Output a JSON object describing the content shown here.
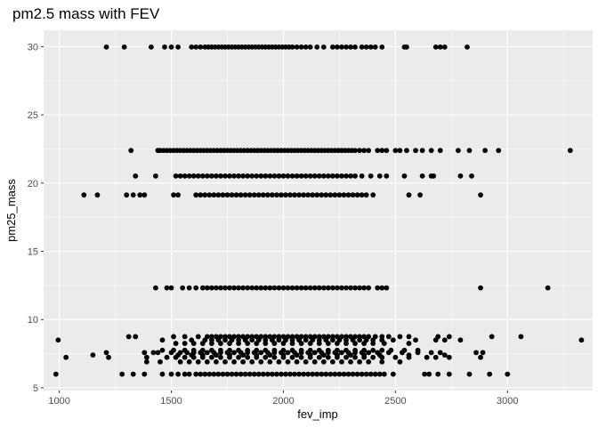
{
  "chart_data": {
    "type": "scatter",
    "title": "pm2.5 mass with FEV",
    "xlabel": "fev_imp",
    "ylabel": "pm25_mass",
    "xlim": [
      930,
      3380
    ],
    "ylim": [
      4.8,
      31.2
    ],
    "xticks": [
      1000,
      1500,
      2000,
      2500,
      3000
    ],
    "yticks": [
      5,
      10,
      15,
      20,
      25,
      30
    ],
    "grid": true,
    "legend": "none",
    "colors": {
      "panel": "#ebebeb",
      "grid": "#ffffff",
      "point": "#000000",
      "tick": "#4d4d4d"
    },
    "series": [
      {
        "bands": [
          {
            "y": 29.97,
            "x": [
              1210,
              1290,
              1410,
              1470,
              1500,
              1530,
              1590,
              1610,
              1630,
              1650,
              1665,
              1680,
              1695,
              1710,
              1725,
              1740,
              1755,
              1770,
              1785,
              1800,
              1815,
              1830,
              1845,
              1860,
              1875,
              1890,
              1905,
              1920,
              1935,
              1950,
              1965,
              1980,
              1995,
              2010,
              2025,
              2040,
              2060,
              2080,
              2100,
              2120,
              2150,
              2180,
              2220,
              2240,
              2260,
              2280,
              2300,
              2320,
              2350,
              2370,
              2390,
              2410,
              2440,
              2540,
              2550,
              2680,
              2700,
              2720,
              2820
            ]
          },
          {
            "y": 22.39,
            "x": [
              1320,
              1440,
              1450,
              1465,
              1480,
              1495,
              1510,
              1525,
              1540,
              1555,
              1570,
              1585,
              1600,
              1615,
              1630,
              1645,
              1660,
              1675,
              1690,
              1705,
              1720,
              1735,
              1750,
              1765,
              1780,
              1795,
              1810,
              1825,
              1840,
              1855,
              1870,
              1885,
              1900,
              1915,
              1930,
              1945,
              1960,
              1975,
              1990,
              2005,
              2020,
              2035,
              2050,
              2065,
              2080,
              2095,
              2110,
              2125,
              2140,
              2155,
              2170,
              2185,
              2200,
              2215,
              2230,
              2245,
              2260,
              2275,
              2290,
              2305,
              2320,
              2340,
              2360,
              2380,
              2420,
              2440,
              2460,
              2500,
              2520,
              2550,
              2590,
              2620,
              2660,
              2700,
              2780,
              2830,
              2900,
              2960,
              3280
            ]
          },
          {
            "y": 20.52,
            "x": [
              1340,
              1430,
              1520,
              1540,
              1560,
              1580,
              1600,
              1620,
              1640,
              1660,
              1680,
              1700,
              1720,
              1740,
              1760,
              1780,
              1800,
              1820,
              1840,
              1860,
              1880,
              1900,
              1920,
              1940,
              1960,
              1980,
              2000,
              2020,
              2040,
              2060,
              2080,
              2100,
              2120,
              2140,
              2160,
              2180,
              2200,
              2220,
              2240,
              2260,
              2280,
              2300,
              2320,
              2350,
              2390,
              2430,
              2460,
              2540,
              2620,
              2660,
              2670,
              2790,
              2840
            ]
          },
          {
            "y": 19.13,
            "x": [
              1110,
              1170,
              1300,
              1330,
              1360,
              1380,
              1510,
              1530,
              1610,
              1630,
              1650,
              1670,
              1690,
              1710,
              1730,
              1750,
              1770,
              1790,
              1810,
              1830,
              1850,
              1870,
              1890,
              1910,
              1930,
              1950,
              1970,
              1990,
              2010,
              2030,
              2050,
              2070,
              2090,
              2110,
              2130,
              2150,
              2170,
              2190,
              2210,
              2230,
              2250,
              2270,
              2290,
              2310,
              2330,
              2350,
              2370,
              2400,
              2560,
              2610,
              2880
            ]
          },
          {
            "y": 12.32,
            "x": [
              1430,
              1480,
              1500,
              1550,
              1580,
              1610,
              1640,
              1660,
              1680,
              1700,
              1720,
              1740,
              1760,
              1780,
              1800,
              1820,
              1840,
              1860,
              1880,
              1900,
              1920,
              1940,
              1960,
              1980,
              2000,
              2020,
              2040,
              2060,
              2080,
              2100,
              2120,
              2140,
              2160,
              2180,
              2200,
              2220,
              2240,
              2260,
              2280,
              2300,
              2320,
              2340,
              2360,
              2380,
              2420,
              2440,
              2460,
              2880,
              3180
            ]
          },
          {
            "y": 8.75,
            "x": [
              1310,
              1340,
              1510,
              1560,
              1620,
              1660,
              1680,
              1700,
              1720,
              1740,
              1760,
              1780,
              1800,
              1820,
              1840,
              1860,
              1880,
              1900,
              1920,
              1940,
              1960,
              1980,
              2000,
              2020,
              2040,
              2060,
              2080,
              2100,
              2120,
              2140,
              2160,
              2180,
              2200,
              2220,
              2240,
              2260,
              2280,
              2300,
              2320,
              2340,
              2360,
              2380,
              2410,
              2440,
              2470,
              2520,
              2560,
              2690,
              2740,
              2930,
              3060
            ]
          },
          {
            "y": 8.5,
            "x": [
              995,
              1460,
              1590,
              1650,
              1680,
              1710,
              1740,
              1770,
              1800,
              1830,
              1860,
              1890,
              1920,
              1950,
              1980,
              2010,
              2040,
              2070,
              2100,
              2130,
              2160,
              2190,
              2220,
              2250,
              2280,
              2310,
              2340,
              2370,
              2400,
              2440,
              2490,
              2590,
              2680,
              2720,
              2790,
              3330
            ]
          },
          {
            "y": 8.25,
            "x": [
              1520,
              1560,
              1600,
              1640,
              1680,
              1720,
              1760,
              1800,
              1840,
              1880,
              1920,
              1960,
              2000,
              2040,
              2080,
              2120,
              2160,
              2200,
              2240,
              2280,
              2320,
              2360,
              2400,
              2450,
              2560
            ]
          },
          {
            "y": 7.75,
            "x": [
              1460,
              1510,
              1560,
              1600,
              1640,
              1680,
              1720,
              1760,
              1800,
              1840,
              1880,
              1920,
              1960,
              2000,
              2040,
              2080,
              2120,
              2160,
              2200,
              2240,
              2280,
              2320,
              2360,
              2400,
              2440,
              2480,
              2540,
              2600
            ]
          },
          {
            "y": 7.58,
            "x": [
              1210,
              1380,
              1420,
              1440,
              1500,
              1540,
              1570,
              1600,
              1630,
              1660,
              1690,
              1720,
              1750,
              1780,
              1810,
              1840,
              1870,
              1900,
              1930,
              1960,
              1990,
              2020,
              2050,
              2080,
              2110,
              2140,
              2170,
              2200,
              2230,
              2260,
              2290,
              2320,
              2350,
              2380,
              2420,
              2470,
              2530,
              2600,
              2660,
              2700,
              2860,
              2890
            ]
          },
          {
            "y": 7.4,
            "x": [
              1150,
              1530,
              1590,
              1640,
              1700,
              1760,
              1820,
              1880,
              1940,
              2000,
              2060,
              2120,
              2180,
              2240,
              2300,
              2360,
              2430,
              2560,
              2720
            ]
          },
          {
            "y": 7.23,
            "x": [
              1030,
              1220,
              1390,
              1480,
              1520,
              1560,
              1600,
              1640,
              1680,
              1720,
              1760,
              1800,
              1840,
              1880,
              1920,
              1960,
              2000,
              2040,
              2080,
              2120,
              2160,
              2200,
              2240,
              2280,
              2320,
              2360,
              2400,
              2440,
              2500,
              2560,
              2640,
              2680,
              2740,
              2880
            ]
          },
          {
            "y": 6.9,
            "x": [
              1390,
              1450,
              1540,
              1580,
              1620,
              1660,
              1700,
              1740,
              1780,
              1820,
              1860,
              1900,
              1940,
              1980,
              2020,
              2060,
              2100,
              2140,
              2180,
              2220,
              2260,
              2300,
              2340,
              2380,
              2440,
              2520
            ]
          },
          {
            "y": 6.0,
            "x": [
              985,
              1280,
              1330,
              1380,
              1460,
              1500,
              1530,
              1560,
              1580,
              1610,
              1630,
              1650,
              1670,
              1690,
              1710,
              1730,
              1750,
              1770,
              1790,
              1810,
              1830,
              1850,
              1870,
              1890,
              1910,
              1930,
              1950,
              1970,
              1990,
              2010,
              2030,
              2050,
              2070,
              2090,
              2110,
              2130,
              2150,
              2170,
              2190,
              2210,
              2230,
              2250,
              2270,
              2290,
              2310,
              2330,
              2350,
              2370,
              2390,
              2410,
              2430,
              2450,
              2490,
              2630,
              2650,
              2690,
              2740,
              2830,
              2920,
              3000
            ]
          }
        ]
      }
    ]
  }
}
